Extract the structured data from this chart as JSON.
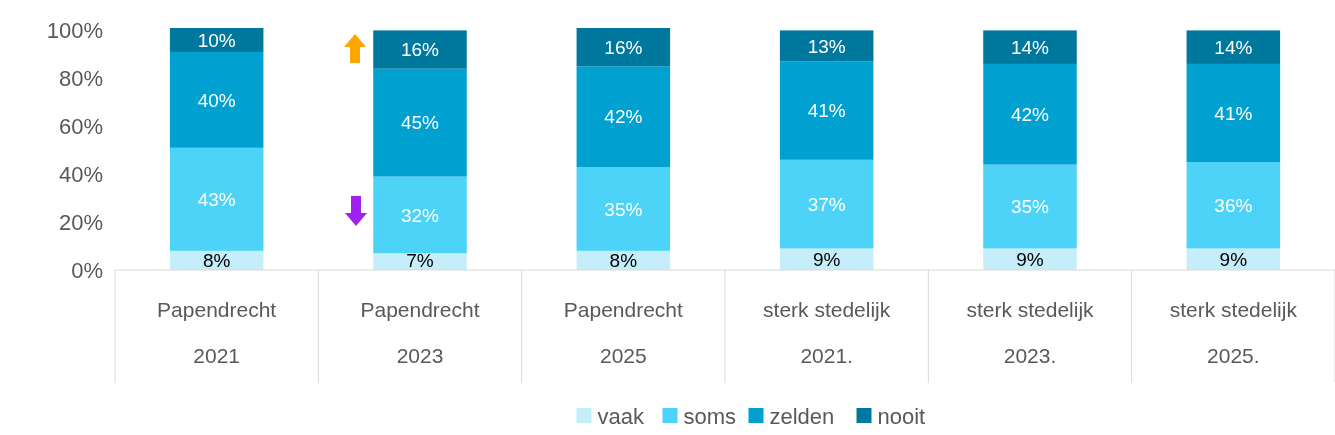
{
  "chart_data": {
    "type": "bar",
    "stacked": true,
    "categories": [
      "Papendrecht\n2021",
      "Papendrecht\n2023",
      "Papendrecht\n2025",
      "sterk stedelijk\n2021.",
      "sterk stedelijk\n2023.",
      "sterk stedelijk\n2025."
    ],
    "series": [
      {
        "name": "vaak",
        "color": "#c5eefa",
        "values": [
          8,
          7,
          8,
          9,
          9,
          9
        ],
        "value_labels": [
          "8%",
          "7%",
          "8%",
          "9%",
          "9%",
          "9%"
        ]
      },
      {
        "name": "soms",
        "color": "#4dd3f7",
        "values": [
          43,
          32,
          35,
          37,
          35,
          36
        ],
        "value_labels": [
          "43%",
          "32%",
          "35%",
          "37%",
          "35%",
          "36%"
        ]
      },
      {
        "name": "zelden",
        "color": "#00a0d0",
        "values": [
          40,
          45,
          42,
          41,
          42,
          41
        ],
        "value_labels": [
          "40%",
          "45%",
          "42%",
          "41%",
          "42%",
          "41%"
        ]
      },
      {
        "name": "nooit",
        "color": "#00789e",
        "values": [
          10,
          16,
          16,
          13,
          14,
          14
        ],
        "value_labels": [
          "10%",
          "16%",
          "16%",
          "13%",
          "14%",
          "14%"
        ]
      }
    ],
    "ylim": [
      0,
      101
    ],
    "yticks": [
      {
        "value": 0,
        "label": "0%"
      },
      {
        "value": 20,
        "label": "20%"
      },
      {
        "value": 40,
        "label": "40%"
      },
      {
        "value": 60,
        "label": "60%"
      },
      {
        "value": 80,
        "label": "80%"
      },
      {
        "value": 100,
        "label": "100%"
      }
    ],
    "legend": "bottom",
    "grid": false
  }
}
